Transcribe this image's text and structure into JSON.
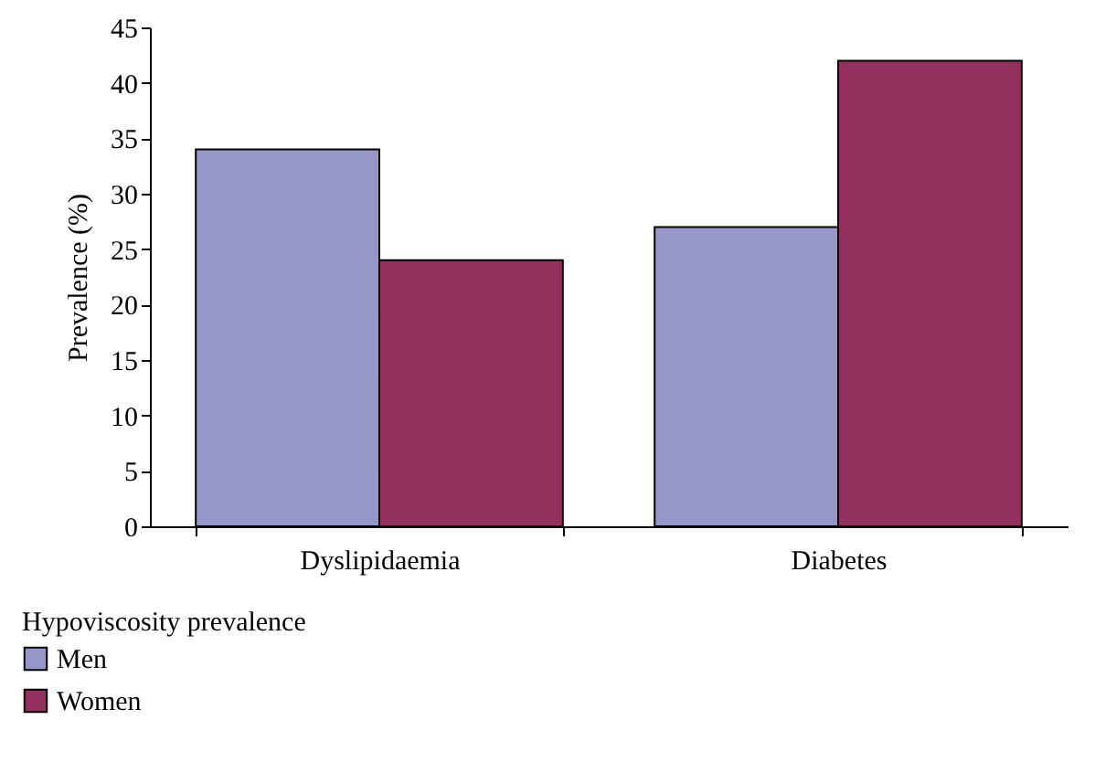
{
  "chart_data": {
    "type": "bar",
    "ylabel": "Prevalence (%)",
    "legend_title": "Hypoviscosity prevalence",
    "categories": [
      "Dyslipidaemia",
      "Diabetes"
    ],
    "series": [
      {
        "name": "Men",
        "color": "#9696c8",
        "values": [
          34,
          27
        ]
      },
      {
        "name": "Women",
        "color": "#94305e",
        "values": [
          24,
          42
        ]
      }
    ],
    "ylim": [
      0,
      45
    ],
    "yticks": [
      0,
      5,
      10,
      15,
      20,
      25,
      30,
      35,
      40,
      45
    ],
    "grid": false,
    "legend": "bottom left"
  }
}
